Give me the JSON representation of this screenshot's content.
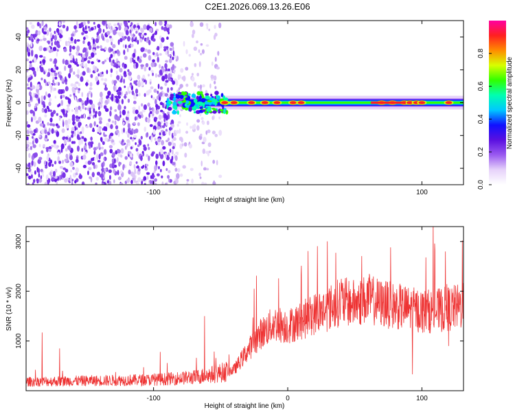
{
  "title": "C2E1.2026.069.13.26.E06",
  "chart_data": [
    {
      "type": "heatmap",
      "xlabel": "Height of straight line (km)",
      "ylabel": "Frequency (Hz)",
      "xlim": [
        -195,
        131
      ],
      "ylim": [
        -50,
        50
      ],
      "x_ticks": [
        -100,
        0,
        100
      ],
      "x_tick_labels": [
        "-100",
        "",
        "100"
      ],
      "y_ticks": [
        -40,
        -20,
        0,
        20,
        40
      ],
      "colorbar": {
        "label": "Normalized spectral amplitude",
        "range": [
          0,
          1
        ],
        "ticks": [
          0.0,
          0.2,
          0.4,
          0.6,
          0.8
        ],
        "tick_labels": [
          "0.0",
          "0.2",
          "0.4",
          "0.6",
          "0.8"
        ],
        "colors": [
          "#ffffff",
          "#e6d2fa",
          "#9a5af0",
          "#5a10e0",
          "#1010ff",
          "#00c8ff",
          "#00ffb0",
          "#30ff00",
          "#d8ff00",
          "#ff8c00",
          "#ff2020",
          "#ff00a0"
        ]
      },
      "ridge": {
        "x_start": -90,
        "x_end": 131,
        "frequency": 0,
        "hotspots_x": [
          -47,
          -40,
          -27,
          -17,
          -8,
          4,
          10,
          70,
          78,
          87,
          91,
          96,
          100,
          120
        ]
      },
      "noise_region_x": [
        -195,
        -50
      ]
    },
    {
      "type": "line",
      "xlabel": "Height of straight line (km)",
      "ylabel": "SNR (10 * v/v)",
      "xlim": [
        -195,
        131
      ],
      "ylim": [
        0,
        3300
      ],
      "x_ticks": [
        -100,
        0,
        100
      ],
      "x_tick_labels": [
        "-100",
        "0",
        "100"
      ],
      "y_ticks": [
        1000,
        2000,
        3000
      ],
      "color": "#ee3333",
      "trend": {
        "x": [
          -195,
          -150,
          -100,
          -70,
          -55,
          -40,
          -30,
          -20,
          -10,
          0,
          10,
          20,
          30,
          40,
          50,
          60,
          70,
          80,
          90,
          100,
          110,
          120,
          131
        ],
        "y": [
          180,
          200,
          220,
          270,
          330,
          420,
          800,
          1150,
          1350,
          1300,
          1400,
          1550,
          1650,
          1800,
          1750,
          1850,
          1750,
          1700,
          1650,
          1600,
          1600,
          1650,
          1700
        ]
      },
      "spikes": [
        {
          "x": -183,
          "y": 1170
        },
        {
          "x": -170,
          "y": 850
        },
        {
          "x": -95,
          "y": 780
        },
        {
          "x": -62,
          "y": 1500
        },
        {
          "x": -25,
          "y": 2050
        },
        {
          "x": 40,
          "y": 2250
        },
        {
          "x": 73,
          "y": 2200
        },
        {
          "x": 93,
          "y": 3300
        },
        {
          "x": 93,
          "y": 330
        },
        {
          "x": 120,
          "y": 2650
        },
        {
          "x": 120,
          "y": 900
        }
      ]
    }
  ]
}
